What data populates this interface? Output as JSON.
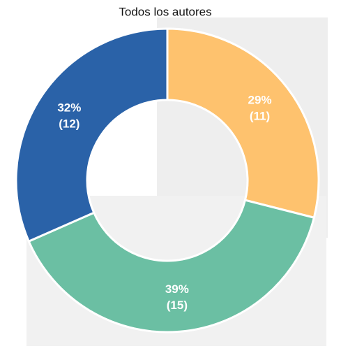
{
  "chart_data": {
    "type": "donut",
    "title": "Todos los autores",
    "categories": [
      "Orange",
      "Green",
      "Blue"
    ],
    "values": [
      11,
      15,
      12
    ],
    "value_labels": [
      "(11)",
      "(15)",
      "(12)"
    ],
    "percentages": [
      29,
      39,
      32
    ],
    "percentage_labels": [
      "29%",
      "39%",
      "32%"
    ],
    "colors": [
      "#fec26e",
      "#6bbfa3",
      "#2a62a8"
    ]
  }
}
